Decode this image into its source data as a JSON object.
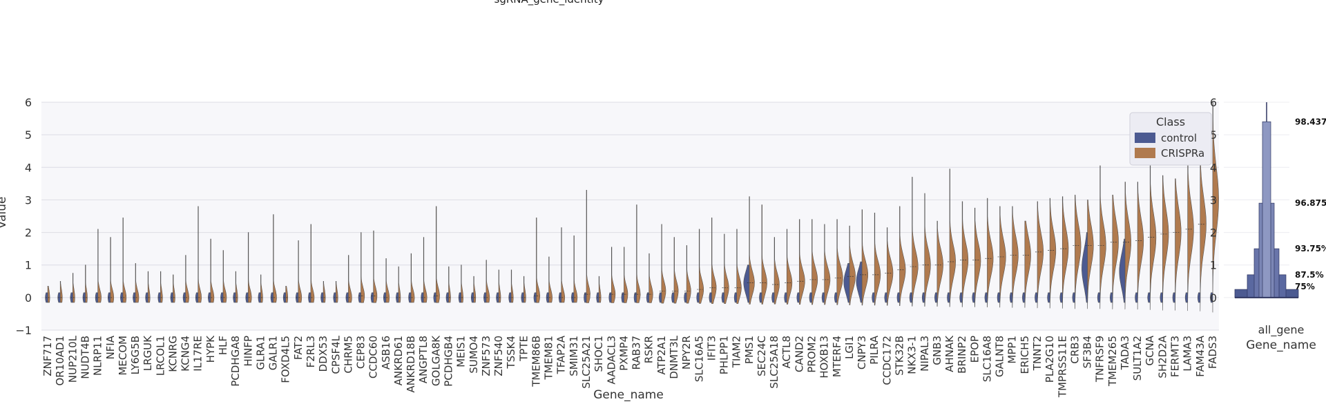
{
  "top_text": "sgRNA_gene_identity",
  "chart_data": [
    {
      "type": "violin",
      "title": "",
      "xlabel": "Gene_name",
      "ylabel": "Value",
      "ylim": [
        -1,
        6
      ],
      "yticks": [
        -1,
        0,
        1,
        2,
        3,
        4,
        5,
        6
      ],
      "grid": "horizontal",
      "legend": {
        "title": "Class",
        "placement": "top-right",
        "entries": [
          {
            "name": "control",
            "color": "#4c5a91"
          },
          {
            "name": "CRISPRa",
            "color": "#b07a4e"
          }
        ]
      },
      "categories": [
        "ZNF717",
        "OR10AD1",
        "NUP210L",
        "NUDT4B",
        "NLRP11",
        "NFIA",
        "MECOM",
        "LY6G5B",
        "LRGUK",
        "LRCOL1",
        "KCNRG",
        "KCNG4",
        "IL17RE",
        "HYPK",
        "HLF",
        "PCDHGA8",
        "HINFP",
        "GLRA1",
        "GALR1",
        "FOXD4L5",
        "FAT2",
        "F2RL3",
        "DDX53",
        "CPSF4L",
        "CHRM5",
        "CEP83",
        "CCDC60",
        "ASB16",
        "ANKRD61",
        "ANKRD18B",
        "ANGPTL8",
        "GOLGA8K",
        "PCDHGB4",
        "MEIS1",
        "SUMO4",
        "ZNF573",
        "ZNF540",
        "TSSK4",
        "TPTE",
        "TMEM86B",
        "TMEM81",
        "TFAP2A",
        "SMIM31",
        "SLC25A21",
        "SHOC1",
        "AADACL3",
        "PXMP4",
        "RAB37",
        "RSKR",
        "ATP2A1",
        "DNMT3L",
        "NPY2R",
        "SLC16A5",
        "IFIT3",
        "PHLPP1",
        "TIAM2",
        "PMS1",
        "SEC24C",
        "SLC25A18",
        "ACTL8",
        "CAND2",
        "PROM2",
        "HOXB13",
        "MTERF4",
        "LGI1",
        "CNPY3",
        "PILRA",
        "CCDC172",
        "STK32B",
        "NKX3-1",
        "NIPAL3",
        "GNB3",
        "AHNAK",
        "BRINP2",
        "EPOP",
        "SLC16A8",
        "GALNT8",
        "MPP1",
        "ERICH5",
        "TNNT2",
        "PLA2G10",
        "TMPRSS11E",
        "CRB3",
        "SF3B4",
        "TNFRSF9",
        "TMEM265",
        "TADA3",
        "SULT1A2",
        "GCNA",
        "SH2D2A",
        "FERMT3",
        "LAMA3",
        "FAM43A",
        "FADS3"
      ],
      "series": [
        {
          "name": "CRISPRa",
          "color": "#b07a4e",
          "max_values": [
            0.35,
            0.5,
            0.75,
            1.0,
            2.1,
            1.85,
            2.45,
            1.05,
            0.8,
            0.8,
            0.7,
            1.3,
            2.8,
            1.8,
            1.45,
            0.8,
            2.0,
            0.7,
            2.55,
            0.35,
            1.75,
            2.25,
            0.5,
            0.5,
            1.3,
            2.0,
            2.05,
            1.2,
            0.95,
            1.35,
            1.85,
            2.8,
            0.95,
            1.0,
            0.65,
            1.15,
            0.85,
            0.85,
            0.65,
            2.45,
            1.25,
            2.15,
            1.9,
            3.3,
            0.65,
            1.55,
            1.55,
            2.85,
            1.35,
            2.25,
            1.85,
            1.6,
            2.1,
            2.45,
            1.95,
            2.1,
            3.1,
            2.85,
            1.85,
            2.1,
            2.4,
            2.4,
            2.25,
            2.4,
            2.2,
            2.7,
            2.6,
            2.15,
            2.8,
            3.7,
            3.2,
            2.35,
            3.95,
            2.95,
            2.75,
            3.05,
            2.8,
            2.8,
            2.35,
            2.95,
            3.05,
            3.1,
            3.15,
            3.0,
            4.05,
            3.15,
            3.55,
            3.55,
            4.05,
            3.75,
            3.65,
            4.05,
            4.55,
            6.0
          ],
          "medians": [
            0,
            0,
            0,
            0,
            0,
            0,
            0,
            0,
            0,
            0,
            0,
            0,
            0,
            0,
            0,
            0,
            0,
            0,
            0,
            0,
            0,
            0,
            0,
            0,
            0,
            0.05,
            0.05,
            0,
            0,
            0,
            0,
            0.05,
            0,
            0,
            0,
            0,
            0,
            0,
            0,
            0.05,
            0,
            0,
            0,
            0.1,
            0,
            0.1,
            0.1,
            0.1,
            0.1,
            0.2,
            0.2,
            0.2,
            0.25,
            0.3,
            0.3,
            0.3,
            0.45,
            0.45,
            0.4,
            0.45,
            0.5,
            0.55,
            0.55,
            0.6,
            0.65,
            0.7,
            0.7,
            0.75,
            0.85,
            0.95,
            1.0,
            1.0,
            1.1,
            1.15,
            1.15,
            1.2,
            1.25,
            1.3,
            1.3,
            1.4,
            1.45,
            1.5,
            1.6,
            1.6,
            1.6,
            1.7,
            1.7,
            1.75,
            1.85,
            1.95,
            2.0,
            2.1,
            2.25,
            3.0
          ]
        },
        {
          "name": "control",
          "color": "#4c5a91",
          "notable": [
            {
              "category": "PMS1",
              "max": 1.0
            },
            {
              "category": "LGI1",
              "max": 1.05
            },
            {
              "category": "CNPY3",
              "max": 1.1
            },
            {
              "category": "SF3B4",
              "max": 2.0
            },
            {
              "category": "TADA3",
              "max": 1.8
            }
          ]
        }
      ]
    },
    {
      "type": "boxen",
      "xlabel": "Gene_name",
      "categories": [
        "all_gene"
      ],
      "ylim": [
        -1,
        6
      ],
      "yticks": [
        0,
        1,
        2,
        3,
        4,
        5,
        6
      ],
      "levels": [
        {
          "label": "75%",
          "value": 0.25
        },
        {
          "label": "87.5%",
          "value": 0.7
        },
        {
          "label": "93.75%",
          "value": 1.5
        },
        {
          "label": "96.875%",
          "value": 2.9
        },
        {
          "label": "98.4375%",
          "value": 5.4
        }
      ],
      "max": 6.0,
      "color": "#4c5a91"
    }
  ]
}
